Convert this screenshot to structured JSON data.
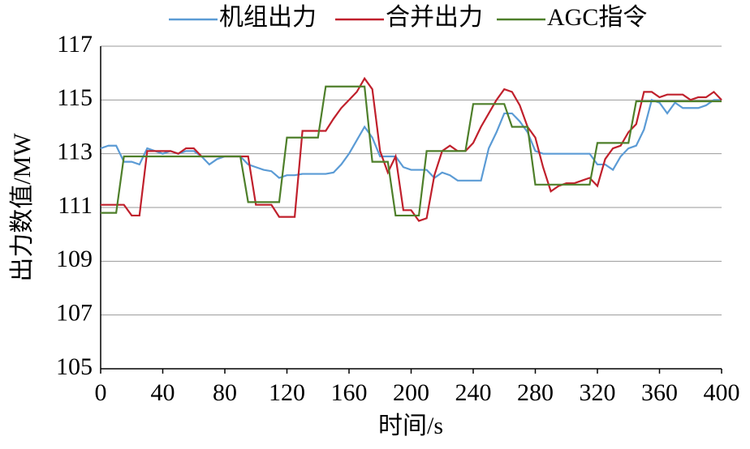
{
  "chart_data": {
    "type": "line",
    "xlabel": "时间/s",
    "ylabel": "出力数值/MW",
    "xlim": [
      0,
      400
    ],
    "xticks": [
      0,
      40,
      80,
      120,
      160,
      200,
      240,
      280,
      320,
      360,
      400
    ],
    "ylim": [
      105,
      117
    ],
    "yticks": [
      105,
      107,
      109,
      111,
      113,
      115,
      117
    ],
    "grid": true,
    "x": [
      0,
      5,
      10,
      15,
      20,
      25,
      30,
      35,
      40,
      45,
      50,
      55,
      60,
      65,
      70,
      75,
      80,
      85,
      90,
      95,
      100,
      105,
      110,
      115,
      120,
      125,
      130,
      135,
      140,
      145,
      150,
      155,
      160,
      165,
      170,
      175,
      180,
      185,
      190,
      195,
      200,
      205,
      210,
      215,
      220,
      225,
      230,
      235,
      240,
      245,
      250,
      255,
      260,
      265,
      270,
      275,
      280,
      285,
      290,
      295,
      300,
      305,
      310,
      315,
      320,
      325,
      330,
      335,
      340,
      345,
      350,
      355,
      360,
      365,
      370,
      375,
      380,
      385,
      390,
      395,
      400
    ],
    "series": [
      {
        "name": "机组出力",
        "color": "#5b9bd5",
        "values": [
          113.2,
          113.3,
          113.3,
          112.7,
          112.7,
          112.6,
          113.2,
          113.1,
          113.0,
          113.1,
          113.0,
          113.1,
          113.1,
          112.9,
          112.6,
          112.8,
          112.9,
          112.9,
          112.9,
          112.6,
          112.5,
          112.4,
          112.35,
          112.1,
          112.2,
          112.2,
          112.25,
          112.25,
          112.25,
          112.25,
          112.3,
          112.6,
          113.0,
          113.5,
          114.0,
          113.6,
          112.9,
          112.9,
          112.9,
          112.5,
          112.4,
          112.4,
          112.4,
          112.1,
          112.3,
          112.2,
          112.0,
          112.0,
          112.0,
          112.0,
          113.2,
          113.8,
          114.5,
          114.5,
          114.2,
          113.8,
          113.1,
          113.0,
          113.0,
          113.0,
          113.0,
          113.0,
          113.0,
          113.0,
          112.6,
          112.6,
          112.4,
          112.9,
          113.2,
          113.3,
          113.9,
          115.0,
          114.9,
          114.5,
          114.9,
          114.7,
          114.7,
          114.7,
          114.8,
          115.0,
          115.0
        ]
      },
      {
        "name": "合并出力",
        "color": "#c0202c",
        "values": [
          111.1,
          111.1,
          111.1,
          111.1,
          110.7,
          110.7,
          113.1,
          113.1,
          113.1,
          113.1,
          113.0,
          113.2,
          113.2,
          112.9,
          112.9,
          112.9,
          112.9,
          112.9,
          112.9,
          112.9,
          111.1,
          111.1,
          111.1,
          110.65,
          110.65,
          110.65,
          113.85,
          113.85,
          113.85,
          113.85,
          114.3,
          114.7,
          115.0,
          115.3,
          115.8,
          115.4,
          113.1,
          112.3,
          112.9,
          110.9,
          110.9,
          110.5,
          110.6,
          112.2,
          113.1,
          113.3,
          113.1,
          113.1,
          113.4,
          114.0,
          114.5,
          115.0,
          115.4,
          115.3,
          114.8,
          114.0,
          113.6,
          112.5,
          111.6,
          111.8,
          111.9,
          111.9,
          112.0,
          112.1,
          111.8,
          112.8,
          113.2,
          113.3,
          113.8,
          114.1,
          115.3,
          115.3,
          115.1,
          115.2,
          115.2,
          115.2,
          115.0,
          115.1,
          115.1,
          115.3,
          115.0
        ]
      },
      {
        "name": "AGC指令",
        "color": "#4e7f2a",
        "values": [
          110.8,
          110.8,
          110.8,
          112.9,
          112.9,
          112.9,
          112.9,
          112.9,
          112.9,
          112.9,
          112.9,
          112.9,
          112.9,
          112.9,
          112.9,
          112.9,
          112.9,
          112.9,
          112.9,
          111.2,
          111.2,
          111.2,
          111.2,
          111.2,
          113.6,
          113.6,
          113.6,
          113.6,
          113.6,
          115.5,
          115.5,
          115.5,
          115.5,
          115.5,
          115.5,
          112.7,
          112.7,
          112.7,
          110.7,
          110.7,
          110.7,
          110.7,
          113.1,
          113.1,
          113.1,
          113.1,
          113.1,
          113.1,
          114.85,
          114.85,
          114.85,
          114.85,
          114.85,
          114.0,
          114.0,
          114.0,
          111.85,
          111.85,
          111.85,
          111.85,
          111.85,
          111.85,
          111.85,
          111.85,
          113.4,
          113.4,
          113.4,
          113.4,
          113.4,
          114.95,
          114.95,
          114.95,
          114.95,
          114.95,
          114.95,
          114.95,
          114.95,
          114.95,
          114.95,
          114.95,
          114.95
        ]
      }
    ]
  }
}
